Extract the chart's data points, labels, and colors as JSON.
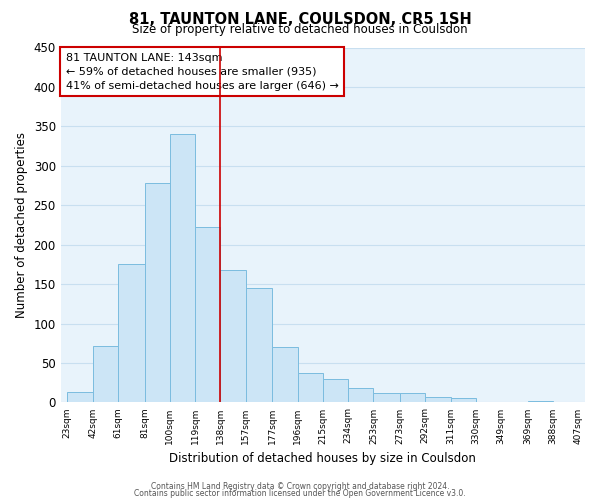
{
  "title": "81, TAUNTON LANE, COULSDON, CR5 1SH",
  "subtitle": "Size of property relative to detached houses in Coulsdon",
  "xlabel": "Distribution of detached houses by size in Coulsdon",
  "ylabel": "Number of detached properties",
  "bar_edges": [
    23,
    42,
    61,
    81,
    100,
    119,
    138,
    157,
    177,
    196,
    215,
    234,
    253,
    273,
    292,
    311,
    330,
    349,
    369,
    388,
    407
  ],
  "bar_heights": [
    13,
    72,
    175,
    278,
    340,
    222,
    168,
    145,
    70,
    37,
    30,
    18,
    12,
    12,
    7,
    5,
    0,
    0,
    2,
    0
  ],
  "bar_color": "#cce5f6",
  "bar_edgecolor": "#7bbcdf",
  "property_line_x": 138,
  "property_line_color": "#cc0000",
  "ylim": [
    0,
    450
  ],
  "yticks": [
    0,
    50,
    100,
    150,
    200,
    250,
    300,
    350,
    400,
    450
  ],
  "xtick_labels": [
    "23sqm",
    "42sqm",
    "61sqm",
    "81sqm",
    "100sqm",
    "119sqm",
    "138sqm",
    "157sqm",
    "177sqm",
    "196sqm",
    "215sqm",
    "234sqm",
    "253sqm",
    "273sqm",
    "292sqm",
    "311sqm",
    "330sqm",
    "349sqm",
    "369sqm",
    "388sqm",
    "407sqm"
  ],
  "annotation_title": "81 TAUNTON LANE: 143sqm",
  "annotation_line1": "← 59% of detached houses are smaller (935)",
  "annotation_line2": "41% of semi-detached houses are larger (646) →",
  "footer1": "Contains HM Land Registry data © Crown copyright and database right 2024.",
  "footer2": "Contains public sector information licensed under the Open Government Licence v3.0.",
  "grid_color": "#c8dff0",
  "background_color": "#e8f3fb"
}
